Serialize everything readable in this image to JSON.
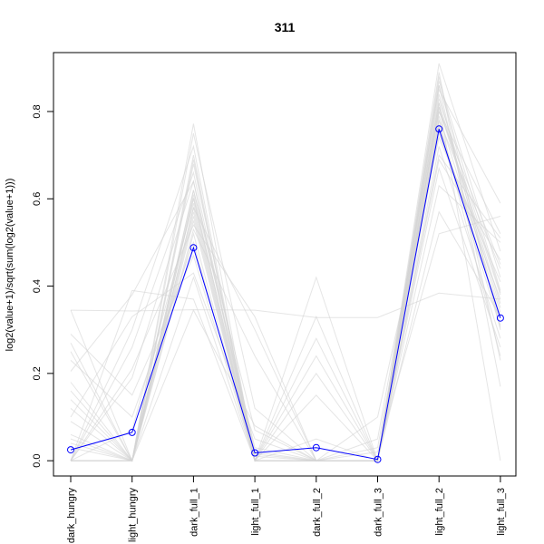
{
  "chart_data": {
    "type": "line",
    "title": "311",
    "xlabel": "",
    "ylabel": "log2(value+1)/sqrt(sum(log2(value+1)))",
    "categories": [
      "dark_hungry",
      "light_hungry",
      "dark_full_1",
      "light_full_1",
      "dark_full_2",
      "dark_full_3",
      "light_full_2",
      "light_full_3"
    ],
    "y_ticks": [
      0.0,
      0.2,
      0.4,
      0.6,
      0.8
    ],
    "y_tick_labels": [
      "0.0",
      "0.2",
      "0.4",
      "0.6",
      "0.8"
    ],
    "ylim": [
      -0.035,
      0.935
    ],
    "grid": false,
    "legend": "none",
    "highlight_color": "#0000ff",
    "background_color": "#d3d3d3",
    "series": [
      {
        "values": [
          0.025,
          0.065,
          0.488,
          0.018,
          0.03,
          0.003,
          0.76,
          0.327
        ]
      }
    ],
    "background_series": [
      [
        0.345,
        0.343,
        0.346,
        0.345,
        0.328,
        0.328,
        0.384,
        0.37
      ],
      [
        0.03,
        0.0,
        0.772,
        0.0,
        0.0,
        0.0,
        0.765,
        0.305
      ],
      [
        0.0,
        0.0,
        0.42,
        0.0,
        0.42,
        0.0,
        0.86,
        0.23
      ],
      [
        0.205,
        0.38,
        0.64,
        0.01,
        0.0,
        0.02,
        0.52,
        0.56
      ],
      [
        0.345,
        0.0,
        0.602,
        0.015,
        0.0,
        0.0,
        0.83,
        0.385
      ],
      [
        0.12,
        0.0,
        0.345,
        0.08,
        0.0,
        0.0,
        0.91,
        0.48
      ],
      [
        0.0,
        0.3,
        0.72,
        0.0,
        0.0,
        0.05,
        0.82,
        0.0
      ],
      [
        0.25,
        0.0,
        0.68,
        0.02,
        0.0,
        0.0,
        0.7,
        0.51
      ],
      [
        0.0,
        0.21,
        0.54,
        0.33,
        0.0,
        0.0,
        0.78,
        0.44
      ],
      [
        0.09,
        0.0,
        0.61,
        0.0,
        0.0,
        0.0,
        0.89,
        0.17
      ],
      [
        0.0,
        0.39,
        0.37,
        0.0,
        0.33,
        0.0,
        0.8,
        0.52
      ],
      [
        0.18,
        0.0,
        0.75,
        0.12,
        0.0,
        0.0,
        0.57,
        0.33
      ],
      [
        0.0,
        0.0,
        0.7,
        0.0,
        0.0,
        0.0,
        0.85,
        0.59
      ],
      [
        0.29,
        0.15,
        0.47,
        0.0,
        0.24,
        0.0,
        0.67,
        0.26
      ],
      [
        0.05,
        0.0,
        0.58,
        0.3,
        0.0,
        0.1,
        0.74,
        0.41
      ],
      [
        0.0,
        0.26,
        0.66,
        0.0,
        0.0,
        0.0,
        0.88,
        0.3
      ],
      [
        0.16,
        0.0,
        0.56,
        0.0,
        0.2,
        0.0,
        0.69,
        0.46
      ],
      [
        0.0,
        0.0,
        0.62,
        0.07,
        0.0,
        0.0,
        0.81,
        0.35
      ],
      [
        0.23,
        0.1,
        0.5,
        0.0,
        0.0,
        0.0,
        0.72,
        0.28
      ],
      [
        0.0,
        0.0,
        0.69,
        0.0,
        0.15,
        0.0,
        0.87,
        0.42
      ],
      [
        0.1,
        0.33,
        0.43,
        0.05,
        0.0,
        0.0,
        0.63,
        0.5
      ],
      [
        0.0,
        0.0,
        0.6,
        0.0,
        0.0,
        0.0,
        0.78,
        0.24
      ],
      [
        0.27,
        0.0,
        0.53,
        0.24,
        0.0,
        0.0,
        0.75,
        0.37
      ],
      [
        0.0,
        0.19,
        0.64,
        0.0,
        0.28,
        0.0,
        0.84,
        0.31
      ],
      [
        0.06,
        0.0,
        0.58,
        0.0,
        0.0,
        0.03,
        0.8,
        0.45
      ],
      [
        0.0,
        0.0,
        0.55,
        0.0,
        0.0,
        0.0,
        0.86,
        0.39
      ],
      [
        0.14,
        0.0,
        0.62,
        0.03,
        0.0,
        0.0,
        0.77,
        0.33
      ],
      [
        0.0,
        0.07,
        0.59,
        0.0,
        0.0,
        0.0,
        0.82,
        0.36
      ],
      [
        0.0,
        0.0,
        0.57,
        0.0,
        0.05,
        0.0,
        0.79,
        0.34
      ],
      [
        0.04,
        0.0,
        0.52,
        0.0,
        0.0,
        0.0,
        0.81,
        0.38
      ]
    ]
  }
}
